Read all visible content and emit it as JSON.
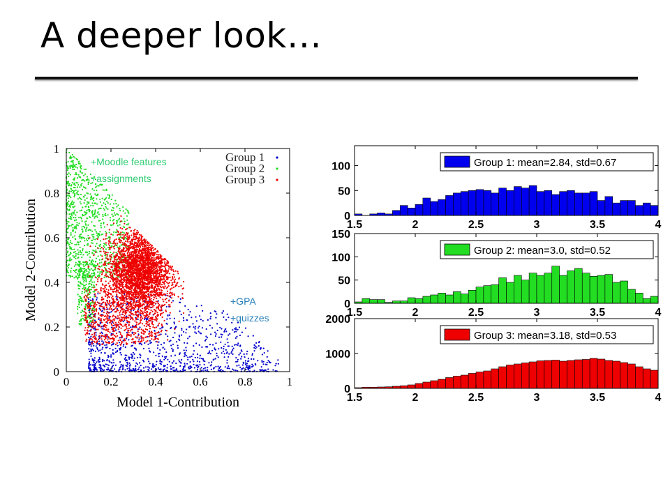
{
  "title": "A deeper look…",
  "chart_data": [
    {
      "type": "scatter",
      "xlabel": "Model 1-Contribution",
      "ylabel": "Model 2-Contribution",
      "xlim": [
        0,
        1
      ],
      "ylim": [
        0,
        1
      ],
      "x_ticks": [
        "0",
        "0.2",
        "0.4",
        "0.6",
        "0.8",
        "1"
      ],
      "y_ticks": [
        "0",
        "0.2",
        "0.4",
        "0.6",
        "0.8",
        "1"
      ],
      "legend_position": "top-right",
      "series": [
        {
          "name": "Group 1",
          "color": "#0000cc",
          "region": "lower",
          "approx_center": [
            0.35,
            0.1
          ]
        },
        {
          "name": "Group 2",
          "color": "#22dd22",
          "region": "upper-left",
          "approx_center": [
            0.15,
            0.6
          ]
        },
        {
          "name": "Group 3",
          "color": "#ee0000",
          "region": "center",
          "approx_center": [
            0.33,
            0.43
          ]
        }
      ],
      "annotations": [
        {
          "lines": [
            "+Moodle features",
            "+assignments"
          ],
          "color": "#2ecc71"
        },
        {
          "lines": [
            "+GPA",
            "+quizzes"
          ],
          "color": "#2980b9"
        }
      ]
    },
    {
      "type": "bar",
      "title": "Group 1: mean=2.84, std=0.67",
      "color": "#0000ee",
      "xlim": [
        1.5,
        4
      ],
      "x_ticks": [
        "1.5",
        "2",
        "2.5",
        "3",
        "3.5",
        "4"
      ],
      "ylim": [
        0,
        140
      ],
      "y_ticks": [
        "0",
        "50",
        "100"
      ],
      "values": [
        3,
        0,
        3,
        5,
        3,
        10,
        20,
        15,
        22,
        35,
        28,
        32,
        40,
        45,
        48,
        50,
        52,
        50,
        45,
        55,
        50,
        58,
        55,
        60,
        48,
        50,
        42,
        48,
        50,
        45,
        45,
        48,
        30,
        38,
        25,
        30,
        30,
        20,
        25,
        20
      ]
    },
    {
      "type": "bar",
      "title": "Group 2: mean=3.0, std=0.52",
      "color": "#22dd22",
      "xlim": [
        1.5,
        4
      ],
      "x_ticks": [
        "1.5",
        "2",
        "2.5",
        "3",
        "3.5",
        "4"
      ],
      "ylim": [
        0,
        150
      ],
      "y_ticks": [
        "0",
        "50",
        "100",
        "150"
      ],
      "values": [
        3,
        10,
        8,
        8,
        2,
        5,
        5,
        12,
        10,
        15,
        18,
        22,
        18,
        25,
        20,
        28,
        35,
        38,
        40,
        55,
        45,
        60,
        50,
        65,
        60,
        65,
        80,
        60,
        70,
        75,
        65,
        58,
        60,
        62,
        45,
        48,
        30,
        22,
        10,
        15
      ]
    },
    {
      "type": "bar",
      "title": "Group 3: mean=3.18, std=0.53",
      "color": "#ee0000",
      "xlim": [
        1.5,
        4
      ],
      "x_ticks": [
        "1.5",
        "2",
        "2.5",
        "3",
        "3.5",
        "4"
      ],
      "ylim": [
        0,
        2000
      ],
      "y_ticks": [
        "0",
        "1000",
        "2000"
      ],
      "values": [
        20,
        35,
        35,
        40,
        45,
        60,
        75,
        100,
        140,
        180,
        220,
        260,
        310,
        350,
        380,
        430,
        470,
        500,
        560,
        620,
        670,
        700,
        730,
        760,
        790,
        800,
        810,
        780,
        800,
        820,
        830,
        860,
        840,
        800,
        780,
        740,
        700,
        620,
        560,
        520
      ]
    }
  ]
}
